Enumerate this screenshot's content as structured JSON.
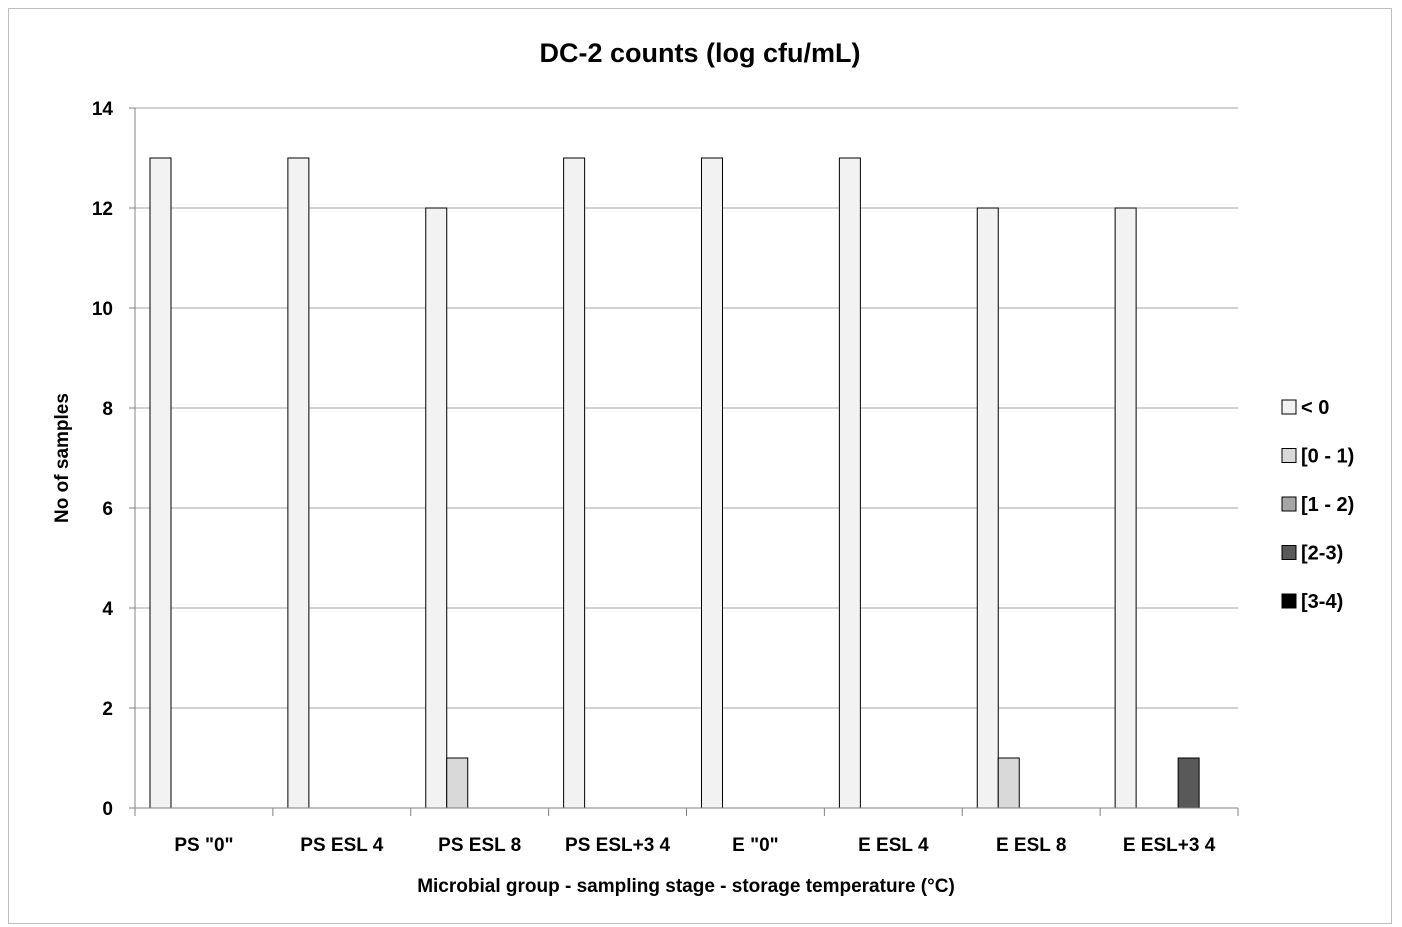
{
  "chart_data": {
    "type": "bar",
    "title": "DC-2 counts (log cfu/mL)",
    "xlabel": "Microbial group - sampling stage - storage temperature (°C)",
    "ylabel": "No of samples",
    "ylim": [
      0,
      14
    ],
    "yticks": [
      "0",
      "2",
      "4",
      "6",
      "8",
      "10",
      "12",
      "14"
    ],
    "grid": true,
    "legend_position": "right",
    "categories": [
      "PS \"0\"",
      "PS ESL 4",
      "PS ESL 8",
      "PS ESL+3 4",
      "E \"0\"",
      "E ESL 4",
      "E ESL 8",
      "E ESL+3 4"
    ],
    "series": [
      {
        "name": "< 0",
        "color": "#f2f2f2",
        "values": [
          13,
          13,
          12,
          13,
          13,
          13,
          12,
          12
        ]
      },
      {
        "name": "[0 - 1)",
        "color": "#d9d9d9",
        "values": [
          0,
          0,
          1,
          0,
          0,
          0,
          1,
          0
        ]
      },
      {
        "name": "[1 - 2)",
        "color": "#a6a6a6",
        "values": [
          0,
          0,
          0,
          0,
          0,
          0,
          0,
          0
        ]
      },
      {
        "name": "[2-3)",
        "color": "#595959",
        "values": [
          0,
          0,
          0,
          0,
          0,
          0,
          0,
          1
        ]
      },
      {
        "name": "[3-4)",
        "color": "#000000",
        "values": [
          0,
          0,
          0,
          0,
          0,
          0,
          0,
          0
        ]
      }
    ]
  }
}
